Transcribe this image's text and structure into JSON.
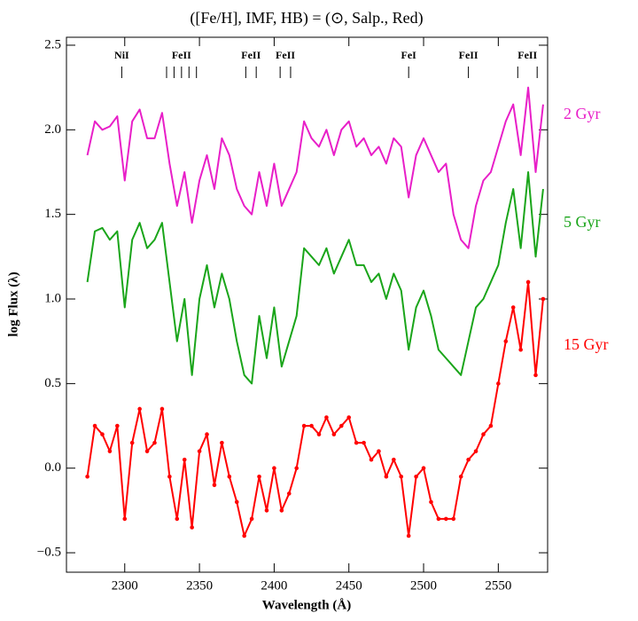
{
  "chart_data": {
    "type": "line",
    "title": "([Fe/H], IMF, HB) = (⊙, Salp., Red)",
    "xlabel": "Wavelength (Å)",
    "ylabel": "log Flux (λ)",
    "xlim": [
      2261,
      2583
    ],
    "ylim": [
      -0.615,
      2.547
    ],
    "xticks": [
      2300,
      2350,
      2400,
      2450,
      2500,
      2550
    ],
    "yticks": [
      {
        "value": -0.5,
        "label": "−0.5"
      },
      {
        "value": 0,
        "label": "0.0"
      },
      {
        "value": 0.5,
        "label": "0.5"
      },
      {
        "value": 1,
        "label": "1.0"
      },
      {
        "value": 1.5,
        "label": "1.5"
      },
      {
        "value": 2,
        "label": "2.0"
      },
      {
        "value": 2.5,
        "label": "2.5"
      }
    ],
    "annotations": [
      {
        "label": "NiI",
        "x": [
          2298
        ]
      },
      {
        "label": "FeII",
        "x": [
          2328,
          2333,
          2338,
          2343,
          2348
        ]
      },
      {
        "label": "FeII",
        "x": [
          2381,
          2388
        ]
      },
      {
        "label": "FeII",
        "x": [
          2404,
          2411
        ]
      },
      {
        "label": "FeI",
        "x": [
          2490
        ]
      },
      {
        "label": "FeII",
        "x": [
          2530
        ]
      },
      {
        "label": "FeII",
        "x": [
          2563,
          2576
        ]
      }
    ],
    "x": [
      2275,
      2280,
      2285,
      2290,
      2295,
      2300,
      2305,
      2310,
      2315,
      2320,
      2325,
      2330,
      2335,
      2340,
      2345,
      2350,
      2355,
      2360,
      2365,
      2370,
      2375,
      2380,
      2385,
      2390,
      2395,
      2400,
      2405,
      2410,
      2415,
      2420,
      2425,
      2430,
      2435,
      2440,
      2445,
      2450,
      2455,
      2460,
      2465,
      2470,
      2475,
      2480,
      2485,
      2490,
      2495,
      2500,
      2505,
      2510,
      2515,
      2520,
      2525,
      2530,
      2535,
      2540,
      2545,
      2550,
      2555,
      2560,
      2565,
      2570,
      2575,
      2580
    ],
    "series": [
      {
        "name": "2 Gyr",
        "color": "#e81fc8",
        "markers": false,
        "values": [
          1.85,
          2.05,
          2.0,
          2.02,
          2.08,
          1.7,
          2.05,
          2.12,
          1.95,
          1.95,
          2.1,
          1.8,
          1.55,
          1.75,
          1.45,
          1.7,
          1.85,
          1.65,
          1.95,
          1.85,
          1.65,
          1.55,
          1.5,
          1.75,
          1.55,
          1.8,
          1.55,
          1.65,
          1.75,
          2.05,
          1.95,
          1.9,
          2.0,
          1.85,
          2.0,
          2.05,
          1.9,
          1.95,
          1.85,
          1.9,
          1.8,
          1.95,
          1.9,
          1.6,
          1.85,
          1.95,
          1.85,
          1.75,
          1.8,
          1.5,
          1.35,
          1.3,
          1.55,
          1.7,
          1.75,
          1.9,
          2.05,
          2.15,
          1.85,
          2.25,
          1.75,
          2.15
        ]
      },
      {
        "name": "5 Gyr",
        "color": "#1aa51a",
        "markers": false,
        "values": [
          1.1,
          1.4,
          1.42,
          1.35,
          1.4,
          0.95,
          1.35,
          1.45,
          1.3,
          1.35,
          1.45,
          1.1,
          0.75,
          1.0,
          0.55,
          1.0,
          1.2,
          0.95,
          1.15,
          1.0,
          0.75,
          0.55,
          0.5,
          0.9,
          0.65,
          0.95,
          0.6,
          0.75,
          0.9,
          1.3,
          1.25,
          1.2,
          1.3,
          1.15,
          1.25,
          1.35,
          1.2,
          1.2,
          1.1,
          1.15,
          1.0,
          1.15,
          1.05,
          0.7,
          0.95,
          1.05,
          0.9,
          0.7,
          0.65,
          0.6,
          0.55,
          0.75,
          0.95,
          1.0,
          1.1,
          1.2,
          1.45,
          1.65,
          1.3,
          1.75,
          1.25,
          1.65
        ]
      },
      {
        "name": "15 Gyr",
        "color": "#ff0000",
        "markers": true,
        "values": [
          -0.05,
          0.25,
          0.2,
          0.1,
          0.25,
          -0.3,
          0.15,
          0.35,
          0.1,
          0.15,
          0.35,
          -0.05,
          -0.3,
          0.05,
          -0.35,
          0.1,
          0.2,
          -0.1,
          0.15,
          -0.05,
          -0.2,
          -0.4,
          -0.3,
          -0.05,
          -0.25,
          0.0,
          -0.25,
          -0.15,
          0.0,
          0.25,
          0.25,
          0.2,
          0.3,
          0.2,
          0.25,
          0.3,
          0.15,
          0.15,
          0.05,
          0.1,
          -0.05,
          0.05,
          -0.05,
          -0.4,
          -0.05,
          0.0,
          -0.2,
          -0.3,
          -0.3,
          -0.3,
          -0.05,
          0.05,
          0.1,
          0.2,
          0.25,
          0.5,
          0.75,
          0.95,
          0.7,
          1.1,
          0.55,
          1.0
        ]
      }
    ]
  }
}
